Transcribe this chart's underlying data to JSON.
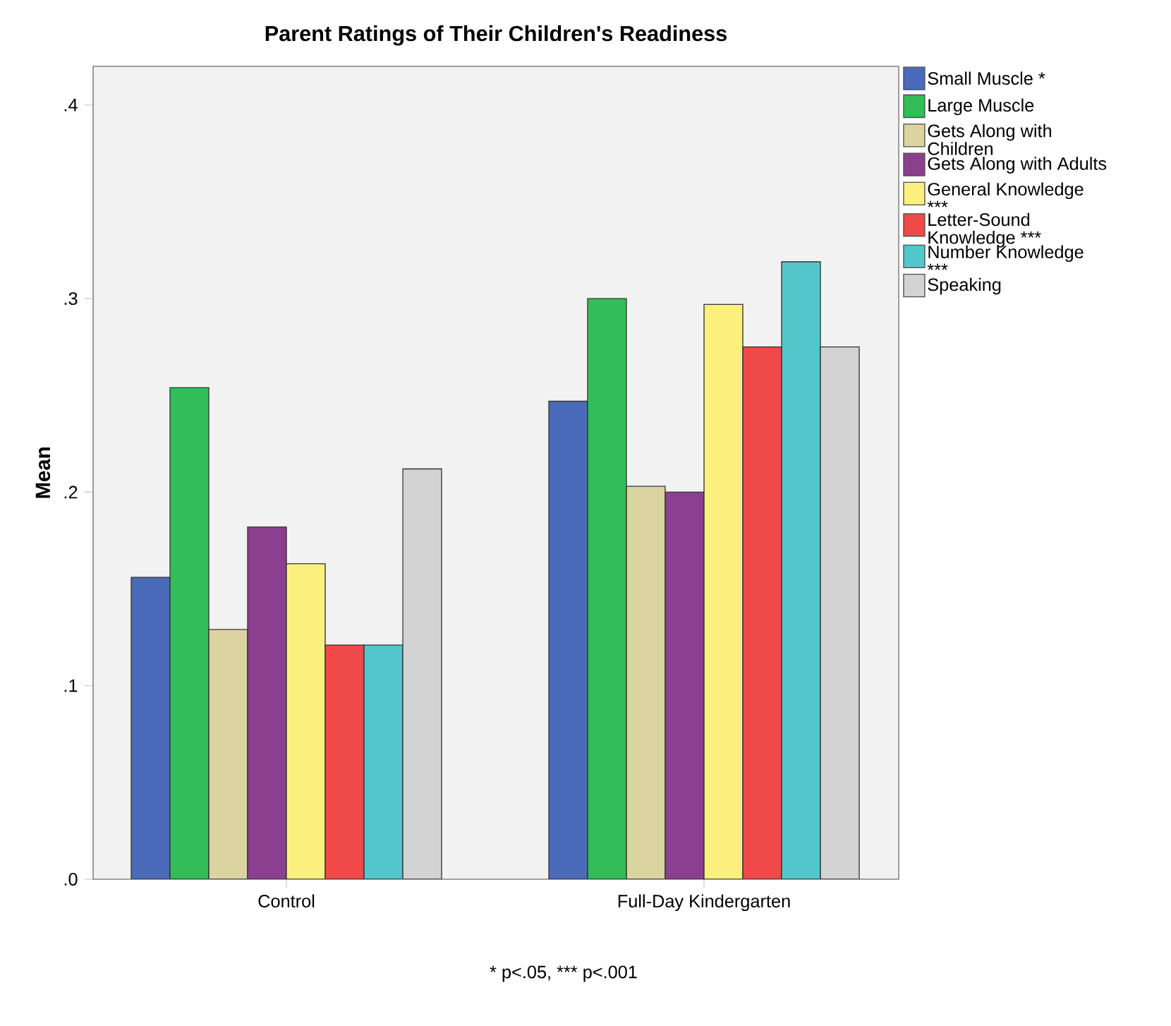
{
  "chart_data": {
    "type": "bar",
    "title": "Parent Ratings of Their Children's Readiness",
    "ylabel": "Mean",
    "categories": [
      "Control",
      "Full-Day Kindergarten"
    ],
    "series": [
      {
        "name": "Small Muscle *",
        "color": "#4b6bba",
        "values": [
          0.156,
          0.247
        ]
      },
      {
        "name": "Large Muscle",
        "color": "#33bd58",
        "values": [
          0.254,
          0.3
        ]
      },
      {
        "name": "Gets Along with Children",
        "color": "#dbd3a0",
        "values": [
          0.129,
          0.203
        ]
      },
      {
        "name": "Gets Along with Adults",
        "color": "#8b3f8f",
        "values": [
          0.182,
          0.2
        ]
      },
      {
        "name": "General Knowledge ***",
        "color": "#fbf07d",
        "values": [
          0.163,
          0.297
        ]
      },
      {
        "name": "Letter-Sound Knowledge ***",
        "color": "#ef4949",
        "values": [
          0.121,
          0.275
        ]
      },
      {
        "name": "Number Knowledge ***",
        "color": "#53c6cc",
        "values": [
          0.121,
          0.319
        ]
      },
      {
        "name": "Speaking",
        "color": "#d3d3d3",
        "values": [
          0.212,
          0.275
        ]
      }
    ],
    "ylim": [
      0,
      0.42
    ],
    "yticks": [
      {
        "value": 0,
        "label": ".0"
      },
      {
        "value": 0.1,
        "label": ".1"
      },
      {
        "value": 0.2,
        "label": ".2"
      },
      {
        "value": 0.3,
        "label": ".3"
      },
      {
        "value": 0.4,
        "label": ".4"
      }
    ],
    "legend": "right",
    "annotations": [
      "* p<.05, *** p<.001"
    ]
  }
}
